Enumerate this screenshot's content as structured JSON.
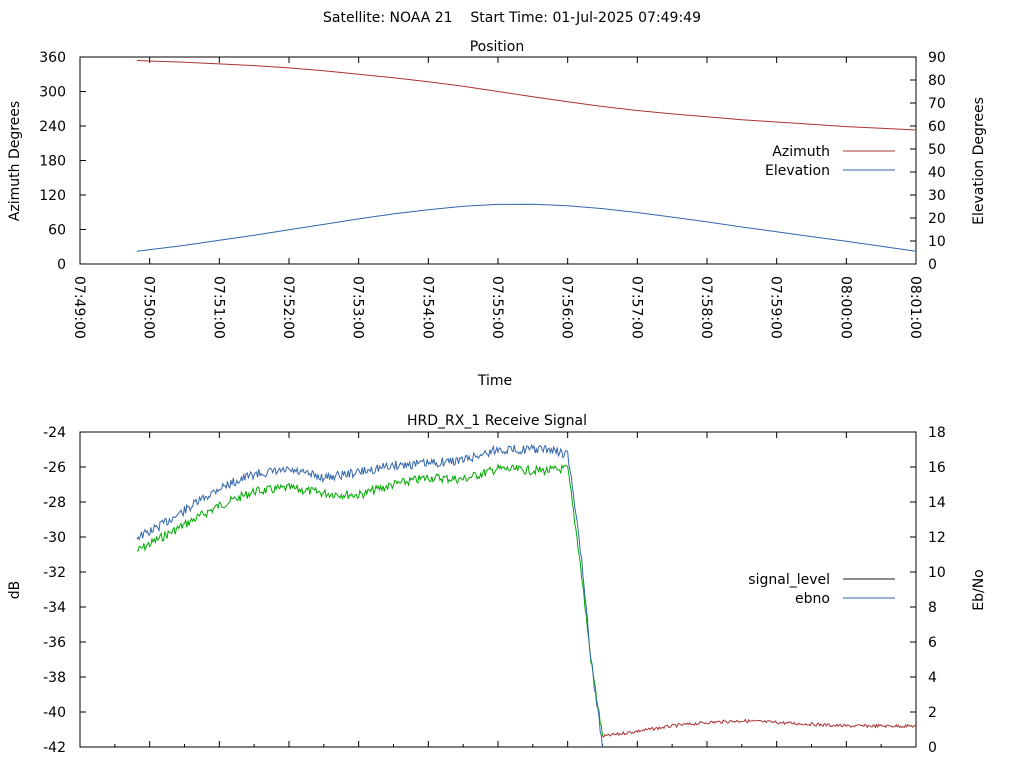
{
  "header": {
    "title": "Satellite: NOAA 21    Start Time: 01-Jul-2025 07:49:49"
  },
  "chart_data": [
    {
      "type": "line",
      "title": "Position",
      "xlabel": "Time",
      "ylabel": "Azimuth Degrees",
      "y2label": "Elevation Degrees",
      "xlim": [
        "07:49:00",
        "08:01:00"
      ],
      "ylim": [
        0,
        360
      ],
      "y2lim": [
        0,
        90
      ],
      "x_ticks": [
        "07:49:00",
        "07:50:00",
        "07:51:00",
        "07:52:00",
        "07:53:00",
        "07:54:00",
        "07:55:00",
        "07:56:00",
        "07:57:00",
        "07:58:00",
        "07:59:00",
        "08:00:00",
        "08:01:00"
      ],
      "y_ticks": [
        "0",
        "60",
        "120",
        "180",
        "240",
        "300",
        "360"
      ],
      "y2_ticks": [
        "0",
        "10",
        "20",
        "30",
        "40",
        "50",
        "60",
        "70",
        "80",
        "90"
      ],
      "grid": false,
      "legend": "right",
      "colors": {
        "azimuth": "#aa3333",
        "elevation": "#3366aa"
      },
      "series": [
        {
          "name": "Azimuth",
          "axis": "y",
          "x": [
            "07:49:49",
            "07:50:30",
            "07:51:00",
            "07:51:30",
            "07:52:00",
            "07:52:30",
            "07:53:00",
            "07:53:30",
            "07:54:00",
            "07:54:30",
            "07:55:00",
            "07:55:30",
            "07:56:00",
            "07:56:30",
            "07:57:00",
            "07:57:30",
            "07:58:00",
            "07:58:30",
            "07:59:00",
            "07:59:30",
            "08:00:00",
            "08:00:30",
            "08:01:00"
          ],
          "values": [
            354,
            351,
            348,
            345,
            341,
            336,
            330,
            324,
            317,
            309,
            300,
            291,
            282,
            274,
            267,
            261,
            256,
            251,
            247,
            243,
            239,
            236,
            233
          ]
        },
        {
          "name": "Elevation",
          "axis": "y2",
          "x": [
            "07:49:49",
            "07:50:30",
            "07:51:00",
            "07:51:30",
            "07:52:00",
            "07:52:30",
            "07:53:00",
            "07:53:30",
            "07:54:00",
            "07:54:30",
            "07:55:00",
            "07:55:30",
            "07:56:00",
            "07:56:30",
            "07:57:00",
            "07:57:30",
            "07:58:00",
            "07:58:30",
            "07:59:00",
            "07:59:30",
            "08:00:00",
            "08:00:30",
            "08:01:00"
          ],
          "values": [
            5.5,
            8.1,
            10.3,
            12.5,
            14.9,
            17.2,
            19.6,
            21.8,
            23.6,
            25.1,
            25.9,
            26.0,
            25.3,
            24.1,
            22.4,
            20.4,
            18.3,
            16.1,
            14.0,
            11.9,
            9.9,
            7.7,
            5.5
          ]
        }
      ]
    },
    {
      "type": "line",
      "title": "HRD_RX_1 Receive Signal",
      "xlabel": "",
      "ylabel": "dB",
      "y2label": "Eb/No",
      "xlim": [
        "07:49:00",
        "08:01:00"
      ],
      "ylim": [
        -42,
        -24
      ],
      "y2lim": [
        0,
        18
      ],
      "y_ticks": [
        "-24",
        "-26",
        "-28",
        "-30",
        "-32",
        "-34",
        "-36",
        "-38",
        "-40",
        "-42"
      ],
      "y2_ticks": [
        "0",
        "2",
        "4",
        "6",
        "8",
        "10",
        "12",
        "14",
        "16",
        "18"
      ],
      "grid": false,
      "legend": "right",
      "colors": {
        "signal_level": "#1a1a1a",
        "ebno": "#3366aa",
        "signal_level_drawn": "#00aa00",
        "low_trace": "#aa3333"
      },
      "series": [
        {
          "name": "signal_level",
          "axis": "y",
          "x": [
            "07:49:49",
            "07:50:00",
            "07:50:30",
            "07:51:00",
            "07:51:30",
            "07:52:00",
            "07:52:30",
            "07:53:00",
            "07:53:30",
            "07:54:00",
            "07:54:30",
            "07:55:00",
            "07:55:30",
            "07:55:45",
            "07:56:00",
            "07:56:10",
            "07:56:20",
            "07:56:30",
            "07:57:00",
            "07:57:30",
            "07:58:00",
            "07:58:30",
            "07:59:00",
            "07:59:30",
            "08:00:00",
            "08:00:30",
            "08:01:00"
          ],
          "values": [
            -30.8,
            -30.4,
            -29.3,
            -28.2,
            -27.4,
            -27.2,
            -27.5,
            -27.6,
            -27.0,
            -26.6,
            -26.7,
            -26.1,
            -26.2,
            -26.2,
            -26.1,
            -31.0,
            -37.0,
            -41.4,
            -41.1,
            -40.8,
            -40.6,
            -40.5,
            -40.6,
            -40.7,
            -40.8,
            -40.8,
            -40.8
          ]
        },
        {
          "name": "ebno",
          "axis": "y2",
          "x": [
            "07:49:49",
            "07:50:00",
            "07:50:30",
            "07:51:00",
            "07:51:30",
            "07:52:00",
            "07:52:30",
            "07:53:00",
            "07:53:30",
            "07:54:00",
            "07:54:30",
            "07:55:00",
            "07:55:30",
            "07:55:45",
            "07:56:00",
            "07:56:10",
            "07:56:20",
            "07:56:30"
          ],
          "values": [
            12.0,
            12.3,
            13.5,
            14.8,
            15.6,
            15.8,
            15.4,
            15.7,
            16.1,
            16.2,
            16.4,
            17.0,
            17.0,
            17.0,
            16.7,
            12.0,
            5.0,
            0.0
          ]
        }
      ]
    }
  ]
}
